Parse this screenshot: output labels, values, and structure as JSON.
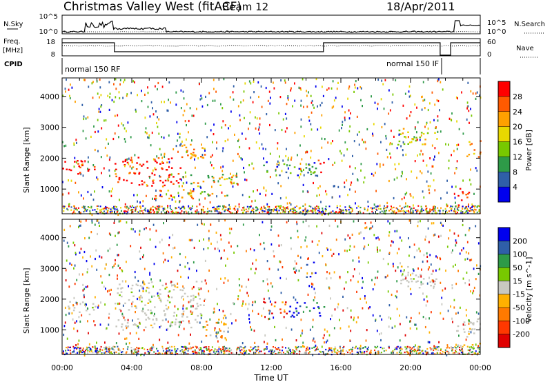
{
  "header": {
    "title": "Christmas Valley West (fitACF)",
    "beam": "Beam 12",
    "date": "18/Apr/2011"
  },
  "params": {
    "nsky_label": "N.Sky",
    "nsearch_label": "N.Search",
    "freq_label_1": "Freq.",
    "freq_label_2": "[MHz]",
    "nave_label": "Nave",
    "cpid_label": "CPID",
    "nsky_ticks": [
      "10^5",
      "10^0"
    ],
    "nsearch_ticks": [
      "10^5",
      "10^0"
    ],
    "freq_ticks": [
      "18",
      "8"
    ],
    "nave_ticks": [
      "60",
      "0"
    ],
    "cpid_segments": [
      "normal 150 RF",
      "normal 150 IF"
    ]
  },
  "chart_data": [
    {
      "type": "heatmap",
      "name": "power",
      "ylabel": "Slant Range [km]",
      "yticks": [
        1000,
        2000,
        3000,
        4000
      ],
      "ylim": [
        200,
        4600
      ],
      "xlim": [
        0,
        24
      ],
      "colorbar": {
        "label": "Power [dB]",
        "ticks": [
          "28",
          "24",
          "20",
          "16",
          "12",
          "8",
          "4"
        ],
        "colors": [
          "#ff0000",
          "#ff5a00",
          "#ffa000",
          "#e8d800",
          "#78c800",
          "#2e9a48",
          "#2f5fa8",
          "#0000ee"
        ]
      },
      "features": [
        {
          "t": [
            0.0,
            1.9
          ],
          "r": [
            1500,
            1950
          ],
          "level": "20-28 dB"
        },
        {
          "t": [
            3.0,
            6.8
          ],
          "r": [
            1100,
            2050
          ],
          "level": "20-28 dB"
        },
        {
          "t": [
            6.8,
            8.2
          ],
          "r": [
            1900,
            2600
          ],
          "level": "16-24 dB"
        },
        {
          "t": [
            5.2,
            7.5
          ],
          "r": [
            600,
            1000
          ],
          "level": "16-24 dB"
        },
        {
          "t": [
            7.3,
            10.0
          ],
          "r": [
            800,
            1500
          ],
          "level": "8-20 dB"
        },
        {
          "t": [
            11.5,
            14.6
          ],
          "r": [
            1450,
            1900
          ],
          "level": "4-16 dB"
        },
        {
          "t": [
            14.6,
            15.0
          ],
          "r": [
            1550,
            2000
          ],
          "level": "20-28 dB"
        },
        {
          "t": [
            19.2,
            21.6
          ],
          "r": [
            2450,
            3000
          ],
          "level": "12-20 dB"
        },
        {
          "t": [
            22.6,
            23.4
          ],
          "r": [
            400,
            1100
          ],
          "level": "20-28 dB"
        },
        {
          "t": [
            23.2,
            24.0
          ],
          "r": [
            2000,
            2600
          ],
          "level": "16-24 dB"
        }
      ]
    },
    {
      "type": "heatmap",
      "name": "velocity",
      "xlabel": "Time UT",
      "ylabel": "Slant Range [km]",
      "xticks": [
        "00:00",
        "04:00",
        "08:00",
        "12:00",
        "16:00",
        "20:00",
        "00:00"
      ],
      "yticks": [
        1000,
        2000,
        3000,
        4000
      ],
      "ylim": [
        200,
        4600
      ],
      "xlim": [
        0,
        24
      ],
      "colorbar": {
        "label": "Velocity [m s^-1]",
        "ticks": [
          "200",
          "100",
          "50",
          "15",
          "-15",
          "-50",
          "-100",
          "-200"
        ],
        "colors": [
          "#0000ee",
          "#2f5fa8",
          "#2e9a48",
          "#78c800",
          "#c8c8c0",
          "#ffb000",
          "#ff7a00",
          "#ff3800",
          "#e00000"
        ]
      },
      "features": [
        {
          "t": [
            0.0,
            1.9
          ],
          "r": [
            1500,
            1950
          ],
          "level": "-15 to 15"
        },
        {
          "t": [
            3.0,
            8.2
          ],
          "r": [
            1100,
            2600
          ],
          "level": "-15 to 15"
        },
        {
          "t": [
            8.2,
            9.5
          ],
          "r": [
            700,
            1500
          ],
          "level": "-50 to -100"
        },
        {
          "t": [
            11.5,
            13.0
          ],
          "r": [
            1550,
            1950
          ],
          "level": "-50 to -200"
        },
        {
          "t": [
            13.0,
            15.0
          ],
          "r": [
            1450,
            1950
          ],
          "level": "100-200"
        },
        {
          "t": [
            14.0,
            14.5
          ],
          "r": [
            2700,
            3300
          ],
          "level": "100-200"
        },
        {
          "t": [
            19.2,
            21.6
          ],
          "r": [
            2400,
            3100
          ],
          "level": "-15 to 15"
        },
        {
          "t": [
            22.6,
            24.0
          ],
          "r": [
            400,
            1400
          ],
          "level": "-15 to 15"
        }
      ]
    }
  ]
}
